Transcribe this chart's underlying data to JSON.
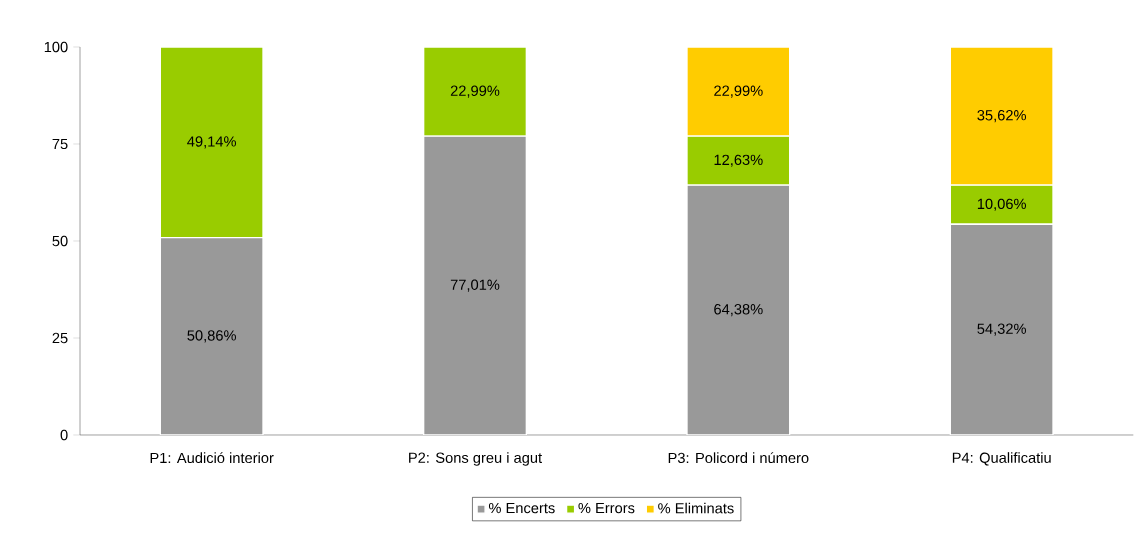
{
  "chart_data": {
    "type": "bar",
    "stacked": true,
    "categories": [
      "P1: Audició interior",
      "P2: Sons greu i agut",
      "P3: Policord i número",
      "P4: Qualificatiu"
    ],
    "series": [
      {
        "name": "% Encerts",
        "color": "#999999",
        "values": [
          50.86,
          77.01,
          64.38,
          54.32
        ],
        "value_labels": [
          "50,86%",
          "77,01%",
          "64,38%",
          "54,32%"
        ]
      },
      {
        "name": "% Errors",
        "color": "#99cc00",
        "values": [
          49.14,
          22.99,
          12.63,
          10.06
        ],
        "value_labels": [
          "49,14%",
          "22,99%",
          "12,63%",
          "10,06%"
        ]
      },
      {
        "name": "% Eliminats",
        "color": "#ffcc00",
        "values": [
          null,
          null,
          22.99,
          35.62
        ],
        "value_labels": [
          null,
          null,
          "22,99%",
          "35,62%"
        ]
      }
    ],
    "ylim": [
      0,
      100
    ],
    "yticks": [
      0,
      25,
      50,
      75,
      100
    ],
    "grid": false,
    "legend": "bottom"
  }
}
